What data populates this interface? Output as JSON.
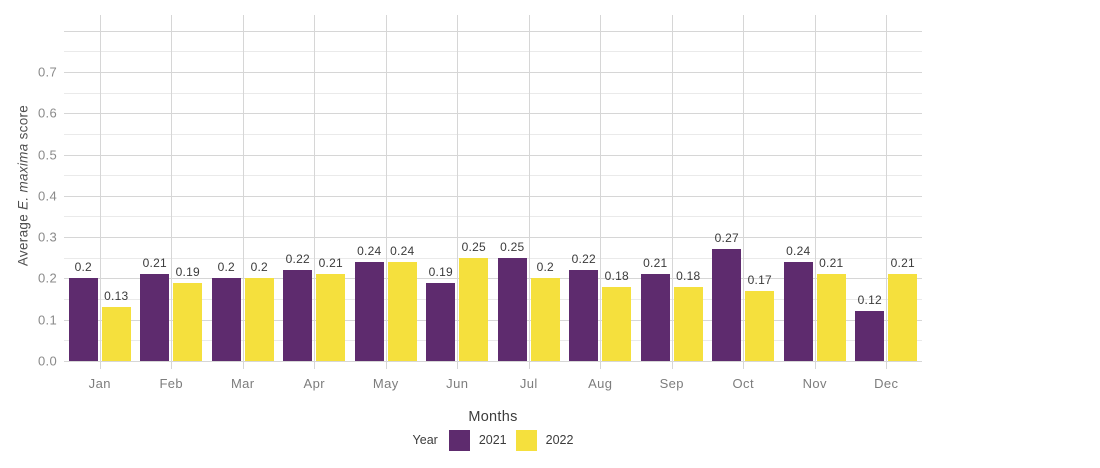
{
  "colors": {
    "background": "#ffffff",
    "series_2021": "#5e2b6e",
    "series_2022": "#f5e03d",
    "grid_major": "#d6d6d6",
    "grid_minor": "#eaeaea",
    "grid_vertical": "#d6d6d6",
    "value_label_text": "#3b3b3b",
    "month_label_text": "#7d7d7d",
    "ytick_text": "#8a8a8a",
    "axis_title_text": "#3c3c3c",
    "y_axis_title_text": "#4f4f4f"
  },
  "chart_data": {
    "type": "bar",
    "title": "",
    "categories": [
      "Jan",
      "Feb",
      "Mar",
      "Apr",
      "May",
      "Jun",
      "Jul",
      "Aug",
      "Sep",
      "Oct",
      "Nov",
      "Dec"
    ],
    "series": [
      {
        "name": "2021",
        "color": "#5e2b6e",
        "values": [
          0.2,
          0.21,
          0.2,
          0.22,
          0.24,
          0.19,
          0.25,
          0.22,
          0.21,
          0.27,
          0.24,
          0.12
        ],
        "labels": [
          "0.2",
          "0.21",
          "0.2",
          "0.22",
          "0.24",
          "0.19",
          "0.25",
          "0.22",
          "0.21",
          "0.27",
          "0.24",
          "0.12"
        ]
      },
      {
        "name": "2022",
        "color": "#f5e03d",
        "values": [
          0.13,
          0.19,
          0.2,
          0.21,
          0.24,
          0.25,
          0.2,
          0.18,
          0.18,
          0.17,
          0.21,
          0.21
        ],
        "labels": [
          "0.13",
          "0.19",
          "0.2",
          "0.21",
          "0.24",
          "0.25",
          "0.2",
          "0.18",
          "0.18",
          "0.17",
          "0.21",
          "0.21"
        ]
      }
    ],
    "xlabel": "Months",
    "ylabel": "Average E. maxima score",
    "ylabel_parts": {
      "prefix": "Average ",
      "italic": "E. maxima",
      "suffix": " score"
    },
    "yticks": [
      "0.0",
      "0.1",
      "0.2",
      "0.3",
      "0.4",
      "0.5",
      "0.6",
      "0.7"
    ],
    "ylim": [
      0,
      0.84
    ],
    "grid": {
      "horizontal_major_step": 0.1,
      "horizontal_minor_step": 0.05,
      "vertical": "category-centers",
      "border": "none"
    },
    "legend_title": "Year",
    "legend_position": "bottom-center",
    "bar_value_labels": true
  }
}
